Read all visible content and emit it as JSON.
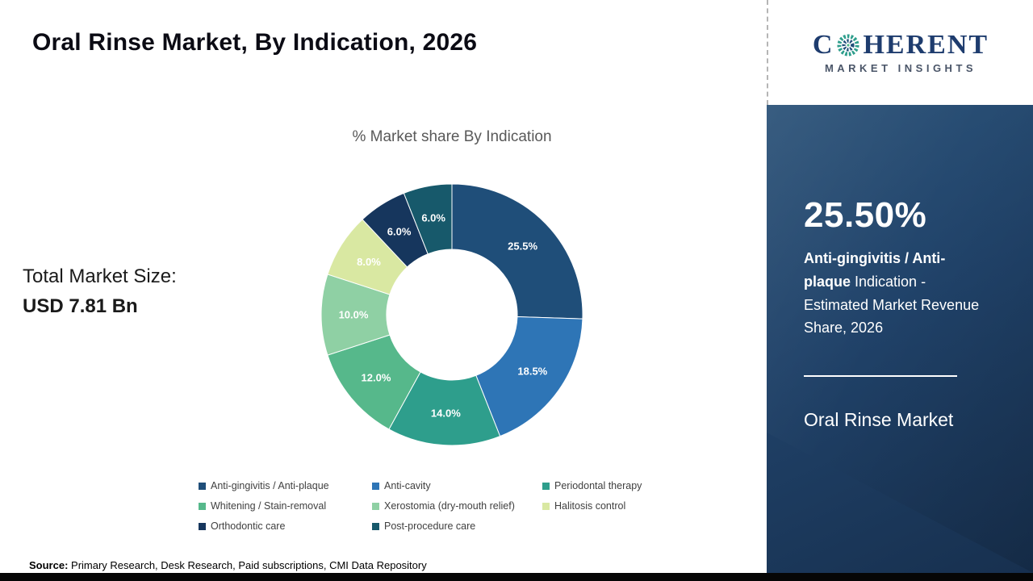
{
  "header": {
    "title": "Oral Rinse Market, By Indication, 2026"
  },
  "brand": {
    "name_start": "C",
    "name_rest": "HERENT",
    "tagline": "MARKET INSIGHTS"
  },
  "left": {
    "total_label": "Total Market Size:",
    "total_value": "USD 7.81 Bn"
  },
  "chart_data": {
    "type": "pie",
    "donut": true,
    "title": "% Market share By Indication",
    "start_angle_deg": 0,
    "direction": "clockwise",
    "categories": [
      "Anti-gingivitis / Anti-plaque",
      "Anti-cavity",
      "Periodontal therapy",
      "Whitening / Stain-removal",
      "Xerostomia (dry-mouth relief)",
      "Halitosis control",
      "Orthodontic care",
      "Post-procedure care"
    ],
    "values": [
      25.5,
      18.5,
      14.0,
      12.0,
      10.0,
      8.0,
      6.0,
      6.0
    ],
    "labels": [
      "25.5%",
      "18.5%",
      "14.0%",
      "12.0%",
      "10.0%",
      "8.0%",
      "6.0%",
      "6.0%"
    ],
    "colors": [
      "#1F4E79",
      "#2E75B6",
      "#2E9E8C",
      "#56B88B",
      "#8FD0A4",
      "#D9E8A2",
      "#16365D",
      "#17596B"
    ],
    "legend_position": "bottom"
  },
  "sidebar": {
    "stat_value": "25.50%",
    "desc_bold": "Anti-gingivitis / Anti-plaque",
    "desc_rest": " Indication - Estimated Market Revenue Share, 2026",
    "market_label": "Oral Rinse Market"
  },
  "footer": {
    "source_label": "Source:",
    "source_text": " Primary Research, Desk Research, Paid subscriptions, CMI Data Repository"
  }
}
